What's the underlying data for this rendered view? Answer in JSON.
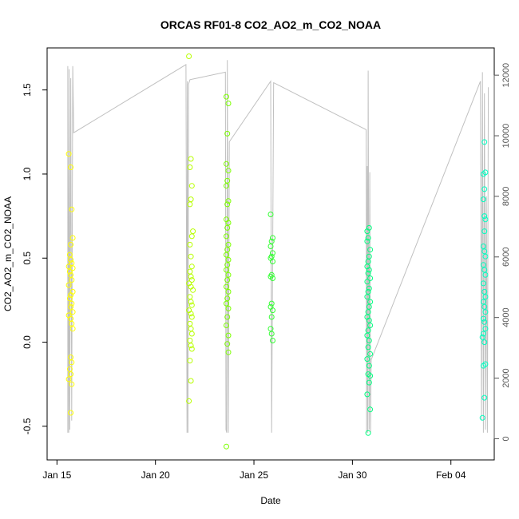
{
  "chart_data": {
    "type": "scatter",
    "title": "ORCAS RF01-8 CO2_AO2_m_CO2_NOAA",
    "xlabel": "Date",
    "ylabel": "CO2_AO2_m_CO2_NOAA",
    "x_unit": "day of 2016",
    "xlim": [
      14.5,
      37.2
    ],
    "ylim": [
      -0.7,
      1.75
    ],
    "x_ticks": [
      {
        "value": 15,
        "label": "Jan 15"
      },
      {
        "value": 20,
        "label": "Jan 20"
      },
      {
        "value": 25,
        "label": "Jan 25"
      },
      {
        "value": 30,
        "label": "Jan 30"
      },
      {
        "value": 35,
        "label": "Feb 04"
      }
    ],
    "y_ticks": [
      {
        "value": -0.5,
        "label": "-0.5"
      },
      {
        "value": 0,
        "label": "0.0"
      },
      {
        "value": 0.5,
        "label": "0.5"
      },
      {
        "value": 1,
        "label": "1.0"
      },
      {
        "value": 1.5,
        "label": "1.5"
      }
    ],
    "right_axis": {
      "ylim": [
        -700,
        12900
      ],
      "ticks": [
        0,
        2000,
        4000,
        6000,
        8000,
        10000,
        12000
      ],
      "track_color": "#c0c0c0"
    },
    "grid": false,
    "legend": "none",
    "series": [
      {
        "color": "#ffff00",
        "points": [
          [
            15.6,
            1.12
          ],
          [
            15.7,
            1.04
          ],
          [
            15.75,
            0.79
          ],
          [
            15.8,
            0.62
          ],
          [
            15.7,
            0.58
          ],
          [
            15.65,
            0.52
          ],
          [
            15.7,
            0.49
          ],
          [
            15.75,
            0.47
          ],
          [
            15.6,
            0.45
          ],
          [
            15.8,
            0.44
          ],
          [
            15.65,
            0.42
          ],
          [
            15.7,
            0.4
          ],
          [
            15.75,
            0.37
          ],
          [
            15.6,
            0.34
          ],
          [
            15.8,
            0.3
          ],
          [
            15.7,
            0.28
          ],
          [
            15.65,
            0.26
          ],
          [
            15.75,
            0.23
          ],
          [
            15.7,
            0.21
          ],
          [
            15.8,
            0.18
          ],
          [
            15.6,
            0.16
          ],
          [
            15.7,
            0.14
          ],
          [
            15.75,
            0.11
          ],
          [
            15.8,
            0.08
          ],
          [
            15.7,
            -0.09
          ],
          [
            15.75,
            -0.12
          ],
          [
            15.65,
            -0.16
          ],
          [
            15.7,
            -0.19
          ],
          [
            15.6,
            -0.22
          ],
          [
            15.75,
            -0.25
          ],
          [
            15.7,
            -0.42
          ]
        ]
      },
      {
        "color": "#b8ff00",
        "points": [
          [
            21.7,
            1.7
          ],
          [
            21.8,
            1.09
          ],
          [
            21.75,
            1.04
          ],
          [
            21.85,
            0.93
          ],
          [
            21.8,
            0.85
          ],
          [
            21.75,
            0.82
          ],
          [
            21.9,
            0.66
          ],
          [
            21.85,
            0.63
          ],
          [
            21.75,
            0.58
          ],
          [
            21.8,
            0.51
          ],
          [
            21.85,
            0.45
          ],
          [
            21.75,
            0.42
          ],
          [
            21.8,
            0.39
          ],
          [
            21.85,
            0.37
          ],
          [
            21.7,
            0.35
          ],
          [
            21.8,
            0.33
          ],
          [
            21.9,
            0.31
          ],
          [
            21.75,
            0.27
          ],
          [
            21.8,
            0.24
          ],
          [
            21.85,
            0.22
          ],
          [
            21.7,
            0.19
          ],
          [
            21.8,
            0.17
          ],
          [
            21.85,
            0.15
          ],
          [
            21.75,
            0.11
          ],
          [
            21.8,
            0.08
          ],
          [
            21.85,
            0.05
          ],
          [
            21.75,
            0.01
          ],
          [
            21.8,
            -0.02
          ],
          [
            21.85,
            -0.04
          ],
          [
            21.75,
            -0.11
          ],
          [
            21.8,
            -0.23
          ],
          [
            21.7,
            -0.35
          ]
        ]
      },
      {
        "color": "#7cff00",
        "points": [
          [
            23.6,
            1.46
          ],
          [
            23.7,
            1.42
          ],
          [
            23.65,
            1.24
          ],
          [
            23.6,
            1.06
          ],
          [
            23.7,
            1.02
          ],
          [
            23.65,
            0.96
          ],
          [
            23.6,
            0.93
          ],
          [
            23.7,
            0.84
          ],
          [
            23.65,
            0.82
          ],
          [
            23.6,
            0.73
          ],
          [
            23.7,
            0.71
          ],
          [
            23.65,
            0.68
          ],
          [
            23.6,
            0.63
          ],
          [
            23.7,
            0.58
          ],
          [
            23.65,
            0.55
          ],
          [
            23.6,
            0.52
          ],
          [
            23.7,
            0.49
          ],
          [
            23.65,
            0.46
          ],
          [
            23.6,
            0.43
          ],
          [
            23.7,
            0.4
          ],
          [
            23.65,
            0.37
          ],
          [
            23.6,
            0.33
          ],
          [
            23.7,
            0.3
          ],
          [
            23.65,
            0.26
          ],
          [
            23.6,
            0.23
          ],
          [
            23.7,
            0.2
          ],
          [
            23.65,
            0.15
          ],
          [
            23.6,
            0.1
          ],
          [
            23.7,
            0.04
          ],
          [
            23.65,
            -0.01
          ],
          [
            23.7,
            -0.06
          ],
          [
            23.6,
            -0.62
          ]
        ]
      },
      {
        "color": "#33ff33",
        "points": [
          [
            25.85,
            0.76
          ],
          [
            25.95,
            0.62
          ],
          [
            25.9,
            0.6
          ],
          [
            25.85,
            0.57
          ],
          [
            25.95,
            0.53
          ],
          [
            25.9,
            0.51
          ],
          [
            25.85,
            0.5
          ],
          [
            25.95,
            0.48
          ],
          [
            25.9,
            0.4
          ],
          [
            25.85,
            0.39
          ],
          [
            25.95,
            0.38
          ],
          [
            25.9,
            0.23
          ],
          [
            25.85,
            0.21
          ],
          [
            25.95,
            0.19
          ],
          [
            25.9,
            0.15
          ],
          [
            25.85,
            0.08
          ],
          [
            25.9,
            0.05
          ],
          [
            25.95,
            0.01
          ]
        ]
      },
      {
        "color": "#00ff80",
        "points": [
          [
            30.75,
            0.66
          ],
          [
            30.85,
            0.68
          ],
          [
            30.8,
            0.62
          ],
          [
            30.75,
            0.6
          ],
          [
            30.9,
            0.55
          ],
          [
            30.85,
            0.51
          ],
          [
            30.8,
            0.48
          ],
          [
            30.75,
            0.45
          ],
          [
            30.85,
            0.43
          ],
          [
            30.8,
            0.41
          ],
          [
            30.9,
            0.38
          ],
          [
            30.75,
            0.36
          ],
          [
            30.85,
            0.32
          ],
          [
            30.8,
            0.3
          ],
          [
            30.75,
            0.27
          ],
          [
            30.9,
            0.24
          ],
          [
            30.85,
            0.21
          ],
          [
            30.8,
            0.18
          ],
          [
            30.75,
            0.15
          ],
          [
            30.85,
            0.13
          ],
          [
            30.9,
            0.1
          ],
          [
            30.8,
            0.07
          ],
          [
            30.75,
            0.04
          ],
          [
            30.85,
            0.01
          ],
          [
            30.8,
            -0.03
          ],
          [
            30.9,
            -0.07
          ],
          [
            30.75,
            -0.1
          ],
          [
            30.85,
            -0.14
          ],
          [
            30.8,
            -0.19
          ],
          [
            30.9,
            -0.2
          ],
          [
            30.85,
            -0.24
          ],
          [
            30.75,
            -0.31
          ],
          [
            30.9,
            -0.4
          ],
          [
            30.8,
            -0.54
          ]
        ]
      },
      {
        "color": "#00ffc0",
        "points": [
          [
            36.7,
            1.19
          ],
          [
            36.65,
            1.0
          ],
          [
            36.75,
            1.01
          ],
          [
            36.7,
            0.91
          ],
          [
            36.65,
            0.85
          ],
          [
            36.7,
            0.75
          ],
          [
            36.75,
            0.73
          ],
          [
            36.7,
            0.66
          ],
          [
            36.65,
            0.57
          ],
          [
            36.7,
            0.54
          ],
          [
            36.75,
            0.51
          ],
          [
            36.65,
            0.46
          ],
          [
            36.7,
            0.43
          ],
          [
            36.75,
            0.4
          ],
          [
            36.65,
            0.35
          ],
          [
            36.7,
            0.3
          ],
          [
            36.75,
            0.27
          ],
          [
            36.65,
            0.24
          ],
          [
            36.7,
            0.21
          ],
          [
            36.75,
            0.18
          ],
          [
            36.65,
            0.14
          ],
          [
            36.7,
            0.12
          ],
          [
            36.75,
            0.08
          ],
          [
            36.65,
            0.05
          ],
          [
            36.6,
            0.03
          ],
          [
            36.7,
            0.0
          ],
          [
            36.75,
            -0.13
          ],
          [
            36.65,
            -0.14
          ],
          [
            36.7,
            -0.33
          ],
          [
            36.6,
            -0.45
          ]
        ]
      }
    ],
    "track": [
      [
        15.55,
        200
      ],
      [
        15.55,
        12300
      ],
      [
        15.6,
        200
      ],
      [
        15.62,
        12200
      ],
      [
        15.65,
        300
      ],
      [
        15.7,
        11900
      ],
      [
        15.75,
        600
      ],
      [
        15.8,
        12300
      ],
      [
        15.85,
        10100
      ],
      [
        21.55,
        12350
      ],
      [
        21.6,
        200
      ],
      [
        21.62,
        11800
      ],
      [
        21.65,
        200
      ],
      [
        21.68,
        11700
      ],
      [
        21.75,
        11850
      ],
      [
        23.55,
        12100
      ],
      [
        23.58,
        300
      ],
      [
        23.62,
        200
      ],
      [
        23.65,
        12500
      ],
      [
        23.7,
        200
      ],
      [
        23.75,
        9800
      ],
      [
        25.85,
        11800
      ],
      [
        25.9,
        200
      ],
      [
        26.0,
        11750
      ],
      [
        30.7,
        10200
      ],
      [
        30.72,
        200
      ],
      [
        30.75,
        9000
      ],
      [
        30.78,
        200
      ],
      [
        30.8,
        12150
      ],
      [
        30.85,
        300
      ],
      [
        30.88,
        8800
      ],
      [
        30.92,
        200
      ],
      [
        30.95,
        2600
      ],
      [
        36.5,
        11800
      ],
      [
        36.55,
        600
      ],
      [
        36.6,
        12100
      ],
      [
        36.65,
        200
      ],
      [
        36.7,
        11400
      ],
      [
        36.75,
        300
      ],
      [
        36.8,
        8000
      ],
      [
        36.85,
        200
      ],
      [
        36.9,
        11600
      ]
    ]
  }
}
